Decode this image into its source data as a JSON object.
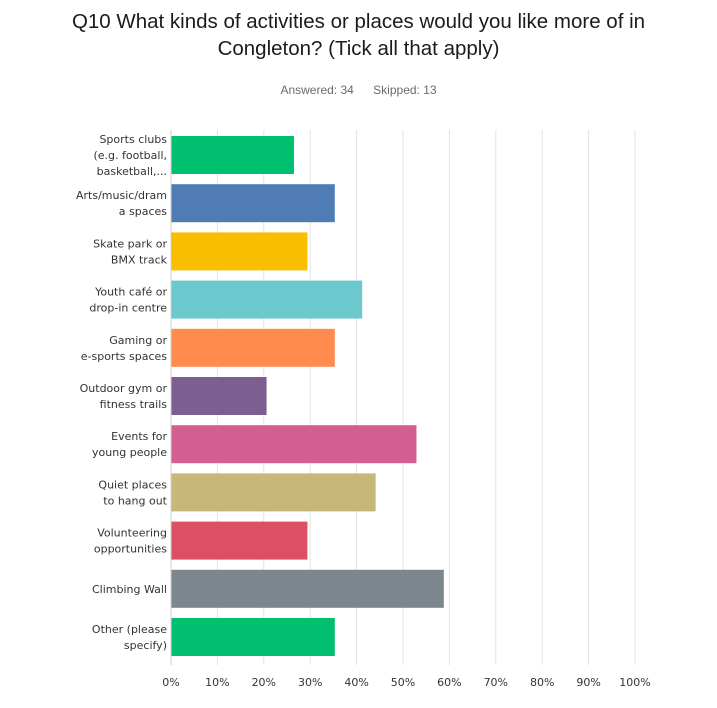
{
  "title_lines": [
    "Q10 What kinds of activities or places would you like more of in",
    "Congleton? (Tick all that apply)"
  ],
  "answered_text": "Answered: 34",
  "skipped_text": "Skipped: 13",
  "chart_data": {
    "type": "bar",
    "orientation": "horizontal",
    "title": "Q10 What kinds of activities or places would you like more of in Congleton? (Tick all that apply)",
    "categories": [
      [
        "Sports clubs",
        "(e.g. football,",
        "basketball,..."
      ],
      [
        "Arts/music/dram",
        "a spaces"
      ],
      [
        "Skate park or",
        "BMX track"
      ],
      [
        "Youth café or",
        "drop-in centre"
      ],
      [
        "Gaming or",
        "e-sports spaces"
      ],
      [
        "Outdoor gym or",
        "fitness trails"
      ],
      [
        "Events for",
        "young people"
      ],
      [
        "Quiet places",
        "to hang out"
      ],
      [
        "Volunteering",
        "opportunities"
      ],
      [
        "Climbing Wall"
      ],
      [
        "Other (please",
        "specify)"
      ]
    ],
    "values": [
      26.5,
      35.3,
      29.4,
      41.2,
      35.3,
      20.6,
      52.9,
      44.1,
      29.4,
      58.8,
      35.3
    ],
    "colors": [
      "#00bf6f",
      "#507cb6",
      "#f9be00",
      "#6bc8cd",
      "#ff8b4f",
      "#7d5e90",
      "#d25f90",
      "#c7b879",
      "#dd5064",
      "#7c868d",
      "#00bf6f"
    ],
    "x_ticks": [
      "0%",
      "10%",
      "20%",
      "30%",
      "40%",
      "50%",
      "60%",
      "70%",
      "80%",
      "90%",
      "100%"
    ],
    "xlim": [
      0,
      100
    ],
    "grid": true
  }
}
